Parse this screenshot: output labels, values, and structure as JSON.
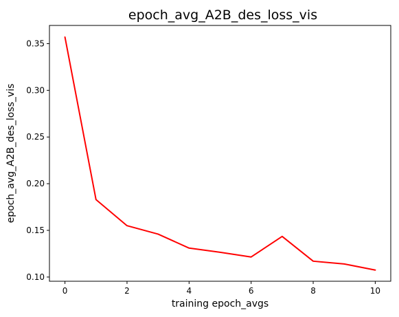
{
  "chart_data": {
    "type": "line",
    "title": "epoch_avg_A2B_des_loss_vis",
    "xlabel": "training epoch_avgs",
    "ylabel": "epoch_avg_A2B_des_loss_vis",
    "x": [
      0,
      1,
      2,
      3,
      4,
      5,
      6,
      7,
      8,
      9,
      10
    ],
    "series": [
      {
        "color": "#ff0000",
        "values": [
          0.357,
          0.183,
          0.155,
          0.146,
          0.131,
          0.1265,
          0.1215,
          0.1435,
          0.117,
          0.114,
          0.1075
        ]
      }
    ],
    "xlim": [
      -0.5,
      10.5
    ],
    "ylim": [
      0.0955,
      0.3695
    ],
    "x_ticks": [
      0,
      2,
      4,
      6,
      8,
      10
    ],
    "x_tick_labels": [
      "0",
      "2",
      "4",
      "6",
      "8",
      "10"
    ],
    "y_ticks": [
      0.1,
      0.15,
      0.2,
      0.25,
      0.3,
      0.35
    ],
    "y_tick_labels": [
      "0.10",
      "0.15",
      "0.20",
      "0.25",
      "0.30",
      "0.35"
    ],
    "grid": false,
    "legend": "none"
  }
}
